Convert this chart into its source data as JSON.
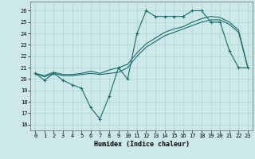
{
  "xlabel": "Humidex (Indice chaleur)",
  "bg_color": "#cce8e8",
  "grid_color": "#aad4d4",
  "line_color": "#1a6b6b",
  "xlim": [
    -0.5,
    23.5
  ],
  "ylim": [
    15.5,
    26.8
  ],
  "yticks": [
    16,
    17,
    18,
    19,
    20,
    21,
    22,
    23,
    24,
    25,
    26
  ],
  "xticks": [
    0,
    1,
    2,
    3,
    4,
    5,
    6,
    7,
    8,
    9,
    10,
    11,
    12,
    13,
    14,
    15,
    16,
    17,
    18,
    19,
    20,
    21,
    22,
    23
  ],
  "line1_x": [
    0,
    1,
    2,
    3,
    4,
    5,
    6,
    7,
    8,
    9,
    10,
    11,
    12,
    13,
    14,
    15,
    16,
    17,
    18,
    19,
    20,
    21,
    22,
    23
  ],
  "line1_y": [
    20.5,
    19.9,
    20.5,
    19.9,
    19.5,
    19.2,
    17.5,
    16.5,
    18.5,
    21.0,
    20.0,
    24.0,
    26.0,
    25.5,
    25.5,
    25.5,
    25.5,
    26.0,
    26.0,
    25.0,
    25.0,
    22.5,
    21.0,
    21.0
  ],
  "line2_x": [
    0,
    1,
    2,
    3,
    4,
    5,
    6,
    7,
    8,
    9,
    10,
    11,
    12,
    13,
    14,
    15,
    16,
    17,
    18,
    19,
    20,
    21,
    22,
    23
  ],
  "line2_y": [
    20.5,
    20.2,
    20.5,
    20.3,
    20.3,
    20.4,
    20.5,
    20.4,
    20.5,
    20.6,
    21.0,
    22.0,
    22.8,
    23.3,
    23.8,
    24.1,
    24.4,
    24.7,
    25.0,
    25.2,
    25.2,
    24.8,
    24.1,
    21.0
  ],
  "line3_x": [
    0,
    1,
    2,
    3,
    4,
    5,
    6,
    7,
    8,
    9,
    10,
    11,
    12,
    13,
    14,
    15,
    16,
    17,
    18,
    19,
    20,
    21,
    22,
    23
  ],
  "line3_y": [
    20.5,
    20.3,
    20.6,
    20.4,
    20.4,
    20.5,
    20.7,
    20.5,
    20.8,
    21.0,
    21.3,
    22.3,
    23.1,
    23.6,
    24.1,
    24.4,
    24.6,
    25.0,
    25.3,
    25.5,
    25.4,
    25.0,
    24.3,
    21.0
  ]
}
